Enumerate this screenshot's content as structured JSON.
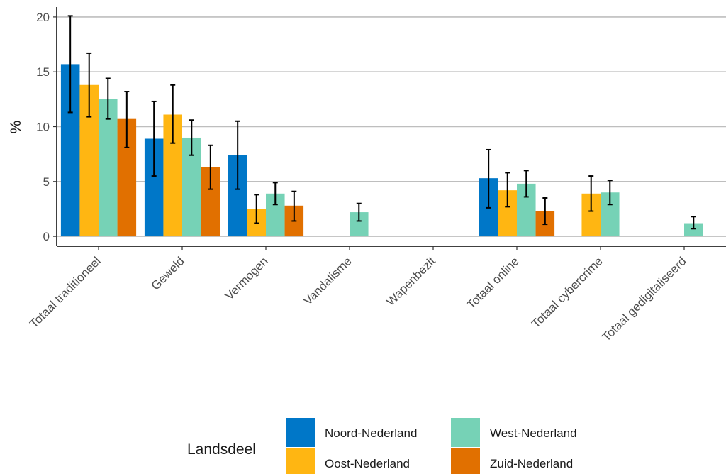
{
  "chart_data": {
    "type": "bar",
    "ylabel": "%",
    "xlabel": "",
    "ylim": [
      -0.9,
      20.9
    ],
    "yticks": [
      0,
      5,
      10,
      15,
      20
    ],
    "grid": "horizontal",
    "legend_position": "bottom",
    "legend_title": "Landsdeel",
    "categories": [
      "Totaal traditioneel",
      "Geweld",
      "Vermogen",
      "Vandalisme",
      "Wapenbezit",
      "Totaal online",
      "Totaal cybercrime",
      "Totaal gedigitaliseerd"
    ],
    "series": [
      {
        "name": "Noord-Nederland",
        "color": "#0077c8",
        "values": [
          15.7,
          8.9,
          7.4,
          null,
          null,
          5.3,
          null,
          null
        ],
        "ci_low": [
          11.3,
          5.5,
          4.3,
          null,
          null,
          2.6,
          null,
          null
        ],
        "ci_high": [
          20.1,
          12.3,
          10.5,
          null,
          null,
          7.9,
          null,
          null
        ]
      },
      {
        "name": "Oost-Nederland",
        "color": "#ffb612",
        "values": [
          13.8,
          11.1,
          2.5,
          null,
          null,
          4.2,
          3.9,
          null
        ],
        "ci_low": [
          10.9,
          8.5,
          1.2,
          null,
          null,
          2.7,
          2.3,
          null
        ],
        "ci_high": [
          16.7,
          13.8,
          3.8,
          null,
          null,
          5.8,
          5.5,
          null
        ]
      },
      {
        "name": "West-Nederland",
        "color": "#76d2b6",
        "values": [
          12.5,
          9.0,
          3.9,
          2.2,
          null,
          4.8,
          4.0,
          1.2
        ],
        "ci_low": [
          10.7,
          7.4,
          2.9,
          1.4,
          null,
          3.6,
          2.9,
          0.7
        ],
        "ci_high": [
          14.4,
          10.6,
          4.9,
          3.0,
          null,
          6.0,
          5.1,
          1.8
        ]
      },
      {
        "name": "Zuid-Nederland",
        "color": "#e17000",
        "values": [
          10.7,
          6.3,
          2.8,
          null,
          null,
          2.3,
          null,
          null
        ],
        "ci_low": [
          8.1,
          4.3,
          1.4,
          null,
          null,
          1.1,
          null,
          null
        ],
        "ci_high": [
          13.2,
          8.3,
          4.1,
          null,
          null,
          3.5,
          null,
          null
        ]
      }
    ]
  }
}
